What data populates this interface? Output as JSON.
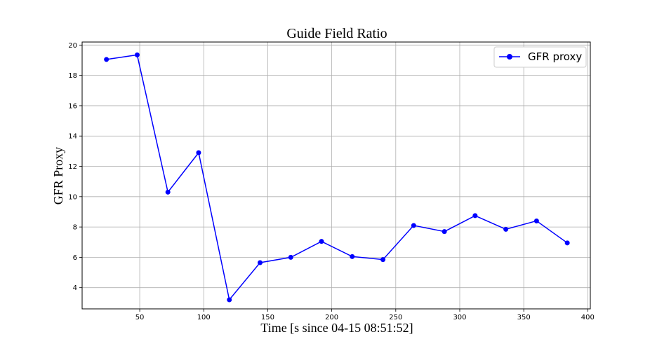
{
  "chart_data": {
    "type": "line",
    "title": "Guide Field Ratio",
    "xlabel": "Time [s since 04-15 08:51:52]",
    "ylabel": "GFR Proxy",
    "xlim": [
      5,
      402
    ],
    "ylim": [
      2.6,
      20.2
    ],
    "xticks": [
      50,
      100,
      150,
      200,
      250,
      300,
      350,
      400
    ],
    "yticks": [
      4,
      6,
      8,
      10,
      12,
      14,
      16,
      18,
      20
    ],
    "grid": true,
    "legend_position": "top-right",
    "series": [
      {
        "name": "GFR proxy",
        "color": "#0000ff",
        "marker": "circle",
        "x": [
          24,
          48,
          72,
          96,
          120,
          144,
          168,
          192,
          216,
          240,
          264,
          288,
          312,
          336,
          360,
          384
        ],
        "y": [
          19.05,
          19.35,
          10.3,
          12.9,
          3.2,
          5.65,
          6.0,
          7.05,
          6.05,
          5.85,
          8.1,
          7.7,
          8.75,
          7.85,
          8.4,
          6.95
        ]
      }
    ]
  }
}
